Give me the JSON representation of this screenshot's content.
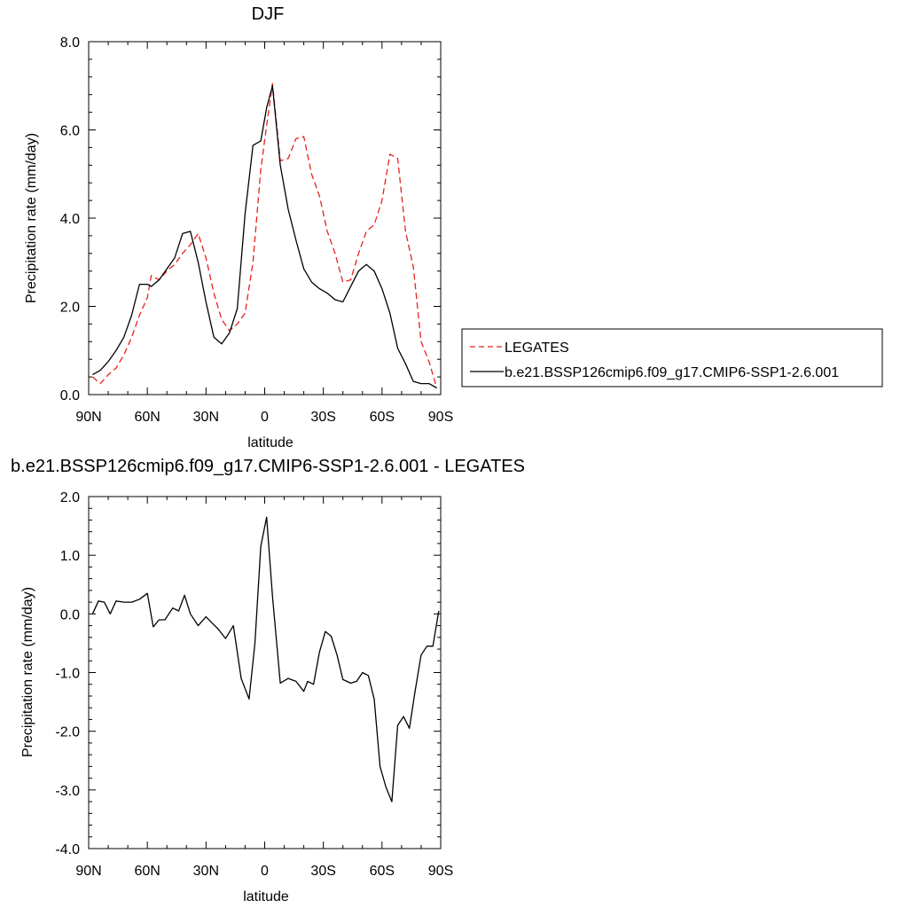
{
  "chart_data": [
    {
      "type": "line",
      "title": "DJF",
      "xlabel": "latitude",
      "ylabel": "Precipitation rate (mm/day)",
      "xlim": [
        90,
        -90
      ],
      "ylim": [
        0,
        8
      ],
      "x_ticks": [
        90,
        60,
        30,
        0,
        -30,
        -60,
        -90
      ],
      "x_tick_labels": [
        "90N",
        "60N",
        "30N",
        "0",
        "30S",
        "60S",
        "90S"
      ],
      "y_ticks": [
        0,
        2,
        4,
        6,
        8
      ],
      "y_tick_labels": [
        "0.0",
        "2.0",
        "4.0",
        "6.0",
        "8.0"
      ],
      "legend_position": "right",
      "series": [
        {
          "name": "LEGATES",
          "color": "#e8201c",
          "dash": "dashed",
          "x": [
            88,
            84,
            80,
            76,
            72,
            68,
            64,
            60,
            58,
            54,
            50,
            46,
            42,
            38,
            34,
            30,
            26,
            22,
            18,
            14,
            10,
            6,
            2,
            -1,
            -4,
            -8,
            -12,
            -16,
            -20,
            -24,
            -28,
            -32,
            -36,
            -40,
            -44,
            -48,
            -52,
            -56,
            -60,
            -64,
            -68,
            -72,
            -76,
            -80,
            -84,
            -88
          ],
          "values": [
            0.4,
            0.25,
            0.45,
            0.6,
            0.9,
            1.3,
            1.8,
            2.2,
            2.7,
            2.6,
            2.8,
            2.95,
            3.2,
            3.4,
            3.65,
            3.1,
            2.3,
            1.7,
            1.45,
            1.6,
            1.85,
            3.0,
            5.1,
            6.1,
            7.05,
            5.3,
            5.35,
            5.8,
            5.85,
            5.0,
            4.5,
            3.7,
            3.2,
            2.55,
            2.6,
            3.2,
            3.7,
            3.85,
            4.4,
            5.45,
            5.35,
            3.7,
            2.9,
            1.2,
            0.75,
            0.15
          ]
        },
        {
          "name": "b.e21.BSSP126cmip6.f09_g17.CMIP6-SSP1-2.6.001",
          "color": "#000000",
          "dash": "solid",
          "x": [
            88,
            84,
            80,
            76,
            72,
            68,
            64,
            60,
            58,
            54,
            50,
            46,
            42,
            38,
            34,
            30,
            26,
            22,
            18,
            14,
            10,
            6,
            2,
            -1,
            -4,
            -8,
            -12,
            -16,
            -20,
            -24,
            -28,
            -32,
            -36,
            -40,
            -44,
            -48,
            -52,
            -56,
            -60,
            -64,
            -68,
            -72,
            -76,
            -80,
            -84,
            -88
          ],
          "values": [
            0.45,
            0.55,
            0.75,
            1.0,
            1.3,
            1.8,
            2.5,
            2.5,
            2.45,
            2.6,
            2.85,
            3.1,
            3.65,
            3.7,
            3.0,
            2.1,
            1.3,
            1.15,
            1.4,
            1.95,
            4.1,
            5.65,
            5.75,
            6.5,
            7.0,
            5.2,
            4.2,
            3.5,
            2.85,
            2.55,
            2.4,
            2.3,
            2.15,
            2.1,
            2.45,
            2.8,
            2.95,
            2.8,
            2.4,
            1.85,
            1.05,
            0.7,
            0.3,
            0.25,
            0.25,
            0.15
          ]
        }
      ]
    },
    {
      "type": "line",
      "title": "b.e21.BSSP126cmip6.f09_g17.CMIP6-SSP1-2.6.001 - LEGATES",
      "xlabel": "latitude",
      "ylabel": "Precipitation rate (mm/day)",
      "xlim": [
        90,
        -90
      ],
      "ylim": [
        -4,
        2
      ],
      "x_ticks": [
        90,
        60,
        30,
        0,
        -30,
        -60,
        -90
      ],
      "x_tick_labels": [
        "90N",
        "60N",
        "30N",
        "0",
        "30S",
        "60S",
        "90S"
      ],
      "y_ticks": [
        -4,
        -3,
        -2,
        -1,
        0,
        1,
        2
      ],
      "y_tick_labels": [
        "-4.0",
        "-3.0",
        "-2.0",
        "-1.0",
        "0.0",
        "1.0",
        "2.0"
      ],
      "series": [
        {
          "color": "#000000",
          "dash": "solid",
          "x": [
            88,
            85,
            82,
            79,
            76,
            72,
            68,
            64,
            60,
            57,
            54,
            51,
            47,
            44,
            41,
            38,
            34,
            30,
            27,
            24,
            20,
            16,
            12,
            8,
            5,
            2,
            -1,
            -4,
            -8,
            -12,
            -16,
            -20,
            -22,
            -25,
            -28,
            -31,
            -34,
            -37,
            -40,
            -44,
            -47,
            -50,
            -53,
            -56,
            -59,
            -62,
            -65,
            -68,
            -71,
            -74,
            -77,
            -80,
            -83,
            -86,
            -89
          ],
          "values": [
            0.0,
            0.22,
            0.2,
            0.0,
            0.22,
            0.2,
            0.2,
            0.25,
            0.35,
            -0.22,
            -0.1,
            -0.1,
            0.1,
            0.05,
            0.32,
            0.0,
            -0.2,
            -0.05,
            -0.15,
            -0.25,
            -0.42,
            -0.2,
            -1.1,
            -1.45,
            -0.5,
            1.15,
            1.65,
            0.3,
            -1.18,
            -1.1,
            -1.15,
            -1.32,
            -1.15,
            -1.2,
            -0.65,
            -0.3,
            -0.38,
            -0.7,
            -1.12,
            -1.18,
            -1.15,
            -1.0,
            -1.05,
            -1.45,
            -2.6,
            -2.95,
            -3.2,
            -1.9,
            -1.75,
            -1.95,
            -1.3,
            -0.7,
            -0.55,
            -0.55,
            0.05
          ]
        }
      ]
    }
  ]
}
